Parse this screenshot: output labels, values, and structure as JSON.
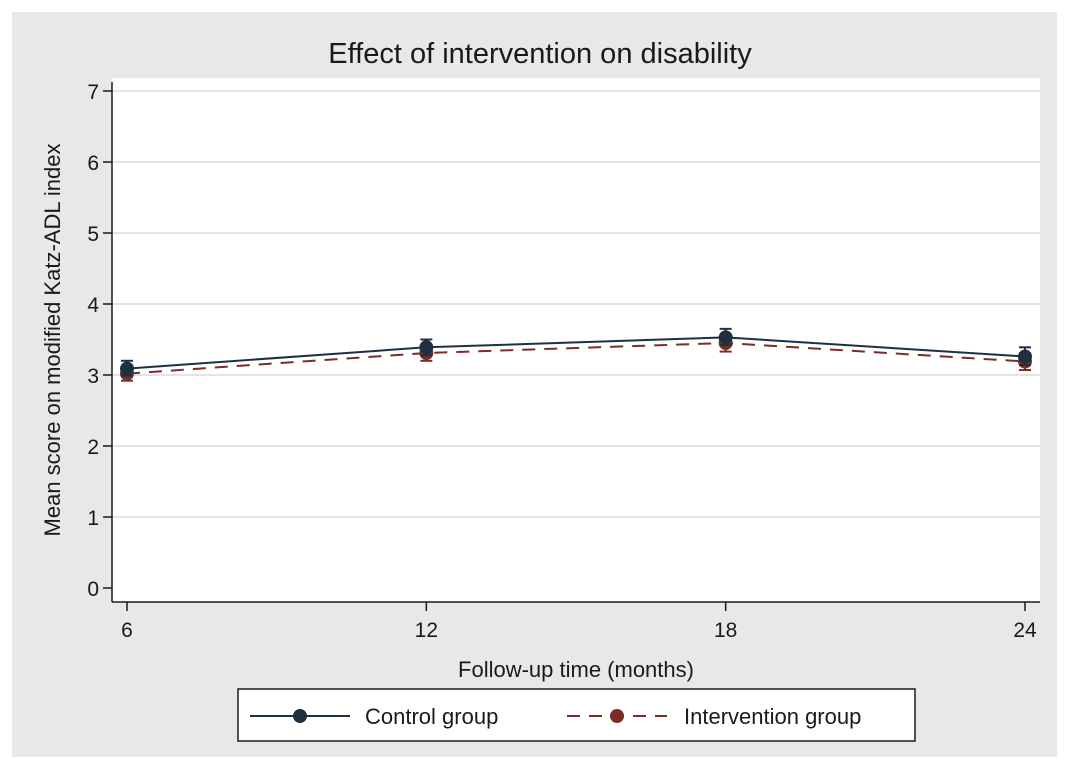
{
  "chart_data": {
    "type": "line",
    "title": "Effect of intervention on disability",
    "xlabel": "Follow-up time (months)",
    "ylabel": "Mean score on modified Katz-ADL index",
    "x": [
      6,
      12,
      18,
      24
    ],
    "x_ticks": [
      "6",
      "12",
      "18",
      "24"
    ],
    "y_ticks": [
      "0",
      "1",
      "2",
      "3",
      "4",
      "5",
      "6",
      "7"
    ],
    "xlim": [
      6,
      24
    ],
    "ylim": [
      0,
      7
    ],
    "grid": "horizontal",
    "legend_position": "bottom",
    "series": [
      {
        "name": "Control group",
        "values": [
          3.09,
          3.39,
          3.53,
          3.26
        ],
        "ci_low": [
          2.99,
          3.28,
          3.42,
          3.14
        ],
        "ci_high": [
          3.2,
          3.5,
          3.65,
          3.39
        ],
        "color": "#1f3140",
        "line_style": "solid",
        "marker": "circle"
      },
      {
        "name": "Intervention group",
        "values": [
          3.02,
          3.31,
          3.45,
          3.19
        ],
        "ci_low": [
          2.92,
          3.2,
          3.33,
          3.07
        ],
        "ci_high": [
          3.12,
          3.41,
          3.57,
          3.31
        ],
        "color": "#7a2d25",
        "line_style": "dashed",
        "marker": "circle"
      }
    ]
  },
  "colors": {
    "background": "#e7e8ea",
    "plot_area": "#ffffff",
    "gridline": "#e3e3e3",
    "axis": "#1a1a1a"
  }
}
